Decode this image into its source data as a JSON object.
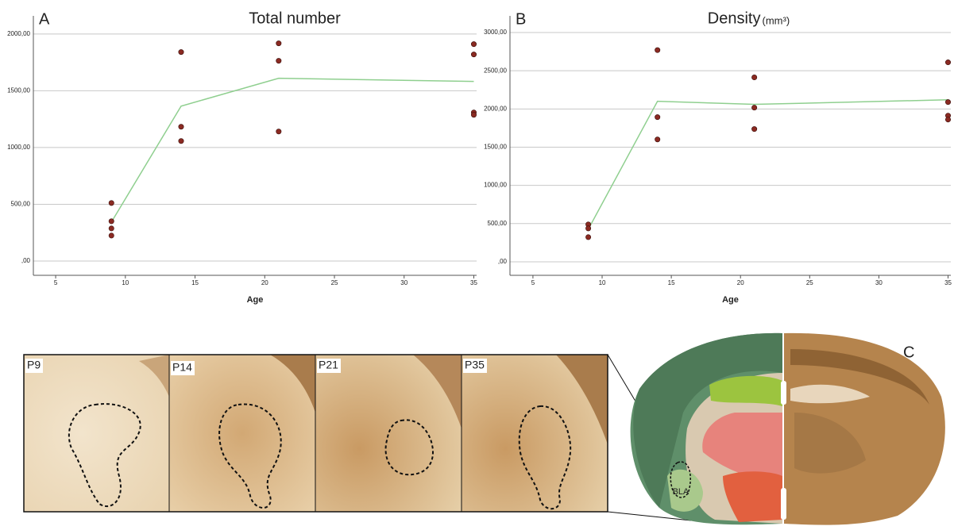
{
  "chart_data": [
    {
      "type": "scatter",
      "panel_label": "A",
      "title": "Total number",
      "x_label": "Age",
      "xlim": [
        3.4,
        35.2
      ],
      "xticks": [
        5,
        10,
        15,
        20,
        25,
        30,
        35
      ],
      "ylim": [
        -126,
        2160
      ],
      "yticks": [
        {
          "value": 0,
          "label": ",00"
        },
        {
          "value": 500,
          "label": "500,00"
        },
        {
          "value": 1000,
          "label": "1000,00"
        },
        {
          "value": 1500,
          "label": "1500,00"
        },
        {
          "value": 2000,
          "label": "2000,00"
        }
      ],
      "grid": true,
      "series": [
        {
          "type": "scatter",
          "color": "#8b2a22",
          "x": [
            9,
            9,
            9,
            9,
            14,
            14,
            14,
            21,
            21,
            21,
            35,
            35,
            35,
            35
          ],
          "values": [
            511,
            350,
            287,
            224,
            1841,
            1183,
            1057,
            1918,
            1764,
            1141,
            1911,
            1820,
            1309,
            1288
          ]
        },
        {
          "type": "line",
          "color": "#8fcf8f",
          "x": [
            9,
            14,
            21,
            35
          ],
          "values": [
            343,
            1365,
            1610,
            1582
          ]
        }
      ]
    },
    {
      "type": "scatter",
      "panel_label": "B",
      "title": "Density",
      "title_unit": "(mm³)",
      "x_label": "Age",
      "xlim": [
        3.34,
        35.2
      ],
      "xticks": [
        5,
        10,
        15,
        20,
        25,
        30,
        35
      ],
      "ylim": [
        -177,
        3218
      ],
      "yticks": [
        {
          "value": 0,
          "label": ",00"
        },
        {
          "value": 500,
          "label": "500,00"
        },
        {
          "value": 1000,
          "label": "1000,00"
        },
        {
          "value": 1500,
          "label": "1500,00"
        },
        {
          "value": 2000,
          "label": "2000,00"
        },
        {
          "value": 2500,
          "label": "2500,00"
        },
        {
          "value": 3000,
          "label": "3000,00"
        }
      ],
      "grid": true,
      "series": [
        {
          "type": "scatter",
          "color": "#8b2a22",
          "x": [
            9,
            9,
            9,
            14,
            14,
            14,
            21,
            21,
            21,
            35,
            35,
            35,
            35
          ],
          "values": [
            489,
            437,
            322,
            2770,
            1893,
            1601,
            2413,
            2017,
            1737,
            2610,
            2090,
            1913,
            1861
          ]
        },
        {
          "type": "line",
          "color": "#8fcf8f",
          "x": [
            9,
            14,
            21,
            35
          ],
          "values": [
            426,
            2100,
            2060,
            2120
          ]
        }
      ]
    }
  ],
  "micrographs": {
    "labels": [
      "P9",
      "P14",
      "P21",
      "P35"
    ]
  },
  "atlas": {
    "panel_label": "C",
    "region": "BLA"
  }
}
